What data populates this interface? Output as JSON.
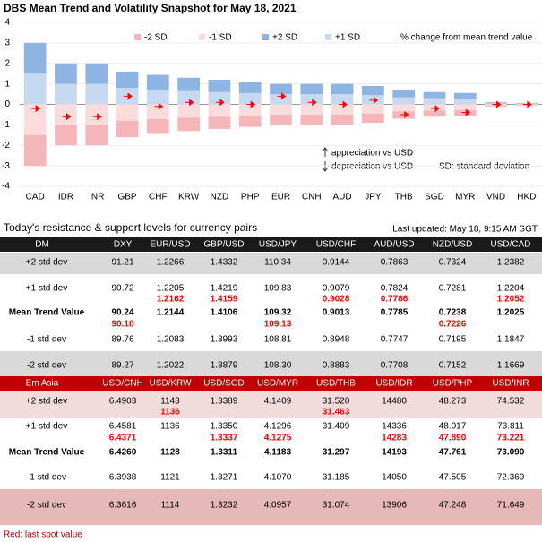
{
  "chart_data": {
    "type": "bar",
    "stacked": true,
    "title": "DBS Mean Trend and Volatility Snapshot for May 18, 2021",
    "annotations": [
      "% change from mean trend value",
      "appreciation vs USD",
      "depreciation vs USD",
      "SD: standard deviation"
    ],
    "categories": [
      "CAD",
      "IDR",
      "INR",
      "GBP",
      "CHF",
      "KRW",
      "NZD",
      "PHP",
      "EUR",
      "CNH",
      "AUD",
      "JPY",
      "THB",
      "SGD",
      "MYR",
      "VND",
      "HKD"
    ],
    "series": [
      {
        "name": "-2 SD",
        "color": "#f4b6b8",
        "values": [
          -1.5,
          -1.0,
          -1.0,
          -0.8,
          -0.72,
          -0.65,
          -0.6,
          -0.55,
          -0.5,
          -0.5,
          -0.5,
          -0.45,
          -0.35,
          -0.3,
          -0.28,
          -0.05,
          -0.03
        ]
      },
      {
        "name": "-1 SD",
        "color": "#fadcdc",
        "values": [
          -1.5,
          -1.0,
          -1.0,
          -0.8,
          -0.72,
          -0.65,
          -0.6,
          -0.55,
          -0.5,
          -0.5,
          -0.5,
          -0.45,
          -0.35,
          -0.3,
          -0.28,
          -0.05,
          -0.03
        ]
      },
      {
        "name": "+2 SD",
        "color": "#8db4e2",
        "values": [
          1.5,
          1.0,
          1.0,
          0.8,
          0.72,
          0.65,
          0.6,
          0.55,
          0.5,
          0.5,
          0.5,
          0.45,
          0.35,
          0.3,
          0.28,
          0.05,
          0.03
        ]
      },
      {
        "name": "+1 SD",
        "color": "#c5d9f1",
        "values": [
          1.5,
          1.0,
          1.0,
          0.8,
          0.72,
          0.65,
          0.6,
          0.55,
          0.5,
          0.5,
          0.5,
          0.45,
          0.35,
          0.3,
          0.28,
          0.05,
          0.03
        ]
      }
    ],
    "spot": {
      "color": "#ff0000",
      "values": [
        -0.2,
        -0.6,
        -0.6,
        0.4,
        -0.1,
        0.1,
        0.1,
        0.0,
        0.4,
        0.1,
        0.0,
        0.2,
        -0.5,
        -0.2,
        -0.4,
        0.0,
        0.0
      ]
    },
    "ylim": [
      -4,
      4
    ],
    "yticks": [
      -4,
      -3,
      -2,
      -1,
      0,
      1,
      2,
      3,
      4
    ],
    "grid": true,
    "legend": "top"
  },
  "tables_section": {
    "title": "Today's resistance & support levels for currency pairs",
    "updated": "Last updated: May 18, 9:15 AM SGT",
    "note": "Red: last spot value",
    "tables": [
      {
        "header": [
          "DM",
          "DXY",
          "EUR/USD",
          "GBP/USD",
          "USD/JPY",
          "USD/CHF",
          "AUD/USD",
          "NZD/USD",
          "USD/CAD"
        ],
        "header_color": "#1a1a1a",
        "rows": [
          {
            "label": "+2 std dev",
            "cells": [
              "91.21",
              "1.2266",
              "1.4332",
              "110.34",
              "0.9144",
              "0.7863",
              "0.7324",
              "1.2382"
            ]
          },
          {
            "label": "+1 std dev",
            "cells": [
              "90.72",
              "1.2205",
              "1.4219",
              "109.83",
              "0.9079",
              "0.7824",
              "0.7281",
              "1.2204"
            ]
          },
          {
            "label": null,
            "color": "#ff0000",
            "bold": true,
            "cells": [
              null,
              "1.2162",
              "1.4159",
              null,
              "0.9028",
              "0.7786",
              null,
              "1.2052"
            ]
          },
          {
            "label": "Mean Trend Value",
            "bold": true,
            "cells": [
              "90.24",
              "1.2144",
              "1.4106",
              "109.32",
              "0.9013",
              "0.7785",
              "0.7238",
              "1.2025"
            ]
          },
          {
            "label": null,
            "color": "#ff0000",
            "bold": true,
            "cells": [
              "90.18",
              null,
              null,
              "109.13",
              null,
              null,
              "0.7226",
              null
            ]
          },
          {
            "label": "-1 std dev",
            "cells": [
              "89.76",
              "1.2083",
              "1.3993",
              "108.81",
              "0.8948",
              "0.7747",
              "0.7195",
              "1.1847"
            ]
          },
          {
            "label": "-2 std dev",
            "cells": [
              "89.27",
              "1.2022",
              "1.3879",
              "108.30",
              "0.8883",
              "0.7708",
              "0.7152",
              "1.1669"
            ]
          }
        ]
      },
      {
        "header": [
          "Em Asia",
          "USD/CNH",
          "USD/KRW",
          "USD/SGD",
          "USD/MYR",
          "USD/THB",
          "USD/IDR",
          "USD/PHP",
          "USD/INR"
        ],
        "header_color": "#c00000",
        "rows": [
          {
            "label": "+2 std dev",
            "cells": [
              "6.4903",
              "1143",
              "1.3389",
              "4.1409",
              "31.520",
              "14480",
              "48.273",
              "74.532"
            ]
          },
          {
            "label": null,
            "color": "#ff0000",
            "bold": true,
            "cells": [
              null,
              "1136",
              null,
              null,
              "31.463",
              null,
              null,
              null
            ]
          },
          {
            "label": "+1 std dev",
            "cells": [
              "6.4581",
              "1136",
              "1.3350",
              "4.1296",
              "31.409",
              "14336",
              "48.017",
              "73.811"
            ]
          },
          {
            "label": null,
            "color": "#ff0000",
            "bold": true,
            "cells": [
              "6.4371",
              null,
              "1.3337",
              "4.1275",
              null,
              "14283",
              "47.890",
              "73.221"
            ]
          },
          {
            "label": "Mean Trend Value",
            "bold": true,
            "cells": [
              "6.4260",
              "1128",
              "1.3311",
              "4.1183",
              "31.297",
              "14193",
              "47.761",
              "73.090"
            ]
          },
          {
            "label": "-1 std dev",
            "cells": [
              "6.3938",
              "1121",
              "1.3271",
              "4.1070",
              "31.185",
              "14050",
              "47.505",
              "72.369"
            ]
          },
          {
            "label": "-2 std dev",
            "cells": [
              "6.3616",
              "1114",
              "1.3232",
              "4.0957",
              "31.074",
              "13906",
              "47.248",
              "71.649"
            ]
          }
        ]
      }
    ]
  }
}
